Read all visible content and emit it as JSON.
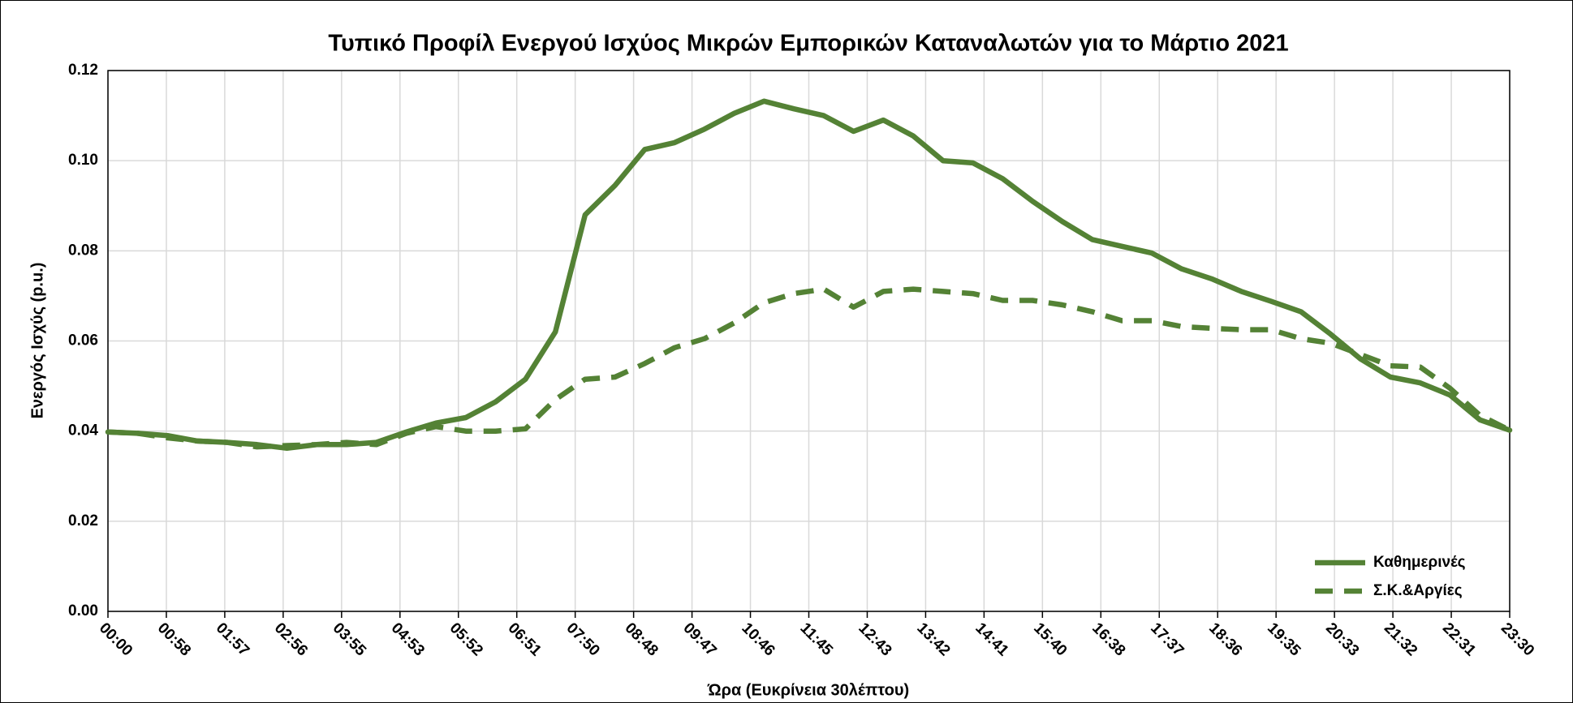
{
  "chart_data": {
    "type": "line",
    "title": "Τυπικό Προφίλ Ενεργού Ισχύος  Μικρών Εμπορικών Καταναλωτών για το Μάρτιο 2021",
    "x_label": "Ώρα (Ευκρίνεια 30λέπτου)",
    "y_label": "Ενεργός Ισχύς (p.u.)",
    "x": [
      0,
      30,
      60,
      90,
      120,
      150,
      180,
      210,
      240,
      270,
      300,
      330,
      360,
      390,
      420,
      450,
      480,
      510,
      540,
      570,
      600,
      630,
      660,
      690,
      720,
      750,
      780,
      810,
      840,
      870,
      900,
      930,
      960,
      990,
      1020,
      1050,
      1080,
      1110,
      1140,
      1170,
      1200,
      1230,
      1260,
      1290,
      1320,
      1350,
      1380,
      1410
    ],
    "series": [
      {
        "name": "Καθημερινές",
        "color": "#548235",
        "dash": "solid",
        "values": [
          0.0398,
          0.0395,
          0.039,
          0.0378,
          0.0375,
          0.037,
          0.0362,
          0.037,
          0.037,
          0.0375,
          0.0398,
          0.0418,
          0.043,
          0.0465,
          0.0515,
          0.062,
          0.088,
          0.0945,
          0.1025,
          0.104,
          0.107,
          0.1105,
          0.1132,
          0.1115,
          0.11,
          0.1065,
          0.109,
          0.1055,
          0.1,
          0.0995,
          0.096,
          0.091,
          0.0865,
          0.0825,
          0.081,
          0.0795,
          0.076,
          0.0738,
          0.071,
          0.0688,
          0.0665,
          0.0615,
          0.056,
          0.052,
          0.0507,
          0.048,
          0.0425,
          0.0402
        ]
      },
      {
        "name": "Σ.Κ.&Αργίες",
        "color": "#548235",
        "dash": "dashed",
        "values": [
          0.0398,
          0.0395,
          0.0385,
          0.0378,
          0.0375,
          0.0365,
          0.0368,
          0.037,
          0.0375,
          0.037,
          0.0395,
          0.041,
          0.04,
          0.04,
          0.0405,
          0.047,
          0.0515,
          0.052,
          0.055,
          0.0585,
          0.0605,
          0.064,
          0.0685,
          0.0705,
          0.0715,
          0.0675,
          0.071,
          0.0715,
          0.071,
          0.0705,
          0.069,
          0.069,
          0.068,
          0.0665,
          0.0645,
          0.0645,
          0.0632,
          0.0628,
          0.0625,
          0.0625,
          0.0605,
          0.0595,
          0.057,
          0.0545,
          0.0542,
          0.0495,
          0.0435,
          0.0402
        ]
      }
    ],
    "xlim": [
      0,
      1410
    ],
    "xticks": [
      {
        "value": 0,
        "label": "00:00"
      },
      {
        "value": 58.75,
        "label": "00:58"
      },
      {
        "value": 117.5,
        "label": "01:57"
      },
      {
        "value": 176.25,
        "label": "02:56"
      },
      {
        "value": 235,
        "label": "03:55"
      },
      {
        "value": 293.75,
        "label": "04:53"
      },
      {
        "value": 352.5,
        "label": "05:52"
      },
      {
        "value": 411.25,
        "label": "06:51"
      },
      {
        "value": 470,
        "label": "07:50"
      },
      {
        "value": 528.75,
        "label": "08:48"
      },
      {
        "value": 587.5,
        "label": "09:47"
      },
      {
        "value": 646.25,
        "label": "10:46"
      },
      {
        "value": 705,
        "label": "11:45"
      },
      {
        "value": 763.75,
        "label": "12:43"
      },
      {
        "value": 822.5,
        "label": "13:42"
      },
      {
        "value": 881.25,
        "label": "14:41"
      },
      {
        "value": 940,
        "label": "15:40"
      },
      {
        "value": 998.75,
        "label": "16:38"
      },
      {
        "value": 1057.5,
        "label": "17:37"
      },
      {
        "value": 1116.25,
        "label": "18:36"
      },
      {
        "value": 1175,
        "label": "19:35"
      },
      {
        "value": 1233.75,
        "label": "20:33"
      },
      {
        "value": 1292.5,
        "label": "21:32"
      },
      {
        "value": 1351.25,
        "label": "22:31"
      },
      {
        "value": 1410,
        "label": "23:30"
      }
    ],
    "ylim": [
      0,
      0.12
    ],
    "yticks": [
      {
        "value": 0,
        "label": "0.00"
      },
      0.02,
      0.04,
      0.06,
      0.08,
      {
        "value": 0.1,
        "label": "0.10"
      },
      0.12
    ],
    "grid": true,
    "legend": "lower right"
  }
}
